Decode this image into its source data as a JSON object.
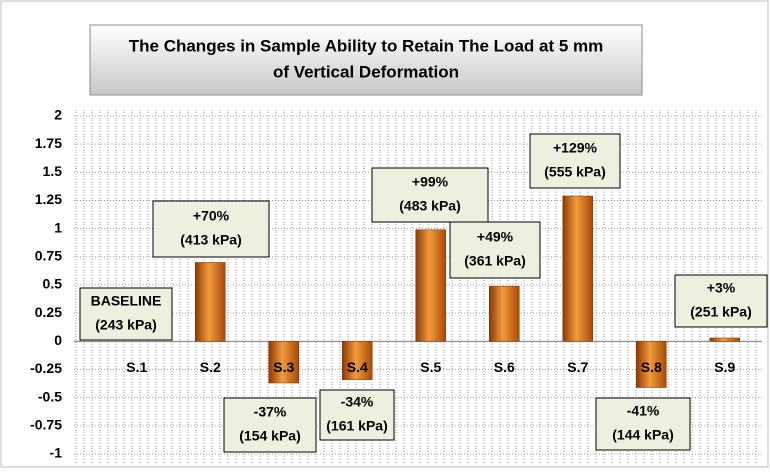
{
  "chart_data": {
    "type": "bar",
    "title": [
      "The Changes in Sample Ability to Retain The Load at 5 mm",
      "of Vertical Deformation"
    ],
    "categories": [
      "S.1",
      "S.2",
      "S.3",
      "S.4",
      "S.5",
      "S.6",
      "S.7",
      "S.8",
      "S.9"
    ],
    "values": [
      0,
      0.7,
      -0.37,
      -0.34,
      0.99,
      0.49,
      1.29,
      -0.41,
      0.03
    ],
    "value_labels": [
      [
        "BASELINE",
        "(243 kPa)"
      ],
      [
        "+70%",
        "(413 kPa)"
      ],
      [
        "-37%",
        "(154 kPa)"
      ],
      [
        "-34%",
        "(161 kPa)"
      ],
      [
        "+99%",
        "(483 kPa)"
      ],
      [
        "+49%",
        "(361 kPa)"
      ],
      [
        "+129%",
        "(555 kPa)"
      ],
      [
        "-41%",
        "(144 kPa)"
      ],
      [
        "+3%",
        "(251 kPa)"
      ]
    ],
    "color": "#e06a10",
    "ylim": [
      -1,
      2
    ],
    "yticks": [
      2,
      1.75,
      1.5,
      1.25,
      1,
      0.75,
      0.5,
      0.25,
      0,
      -0.25,
      -0.5,
      -0.75,
      -1
    ],
    "grid": true
  }
}
